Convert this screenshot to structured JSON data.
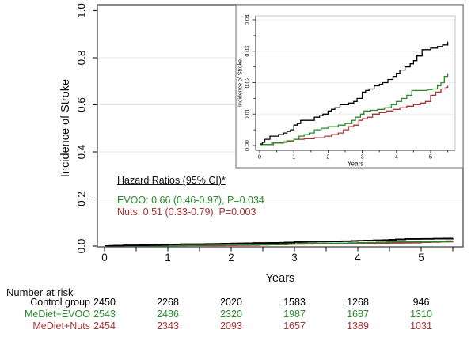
{
  "colors": {
    "control": "#000000",
    "evoo": "#278C27",
    "nuts": "#A93232",
    "grid": "#E7E7E7",
    "axis": "#2B2B2B",
    "box": "#4A4A4A",
    "inset_border": "#6F6F6F",
    "inset_plot_border": "#C6C6C6",
    "inset_grid": "#EDEDED",
    "text": "#111111"
  },
  "annotations": {
    "hazard_title": "Hazard Ratios (95% CI)*",
    "evoo": "EVOO: 0.66 (0.46-0.97), P=0.034",
    "nuts": "Nuts: 0.51 (0.33-0.79), P=0.003"
  },
  "risk_table": {
    "title": "Number at risk",
    "rows": [
      {
        "key": "control",
        "label": "Control group",
        "color_key": "control",
        "values": [
          "2450",
          "2268",
          "2020",
          "1583",
          "1268",
          "946"
        ]
      },
      {
        "key": "evoo",
        "label": "MeDiet+EVOO",
        "color_key": "evoo",
        "values": [
          "2543",
          "2486",
          "2320",
          "1987",
          "1687",
          "1310"
        ]
      },
      {
        "key": "nuts",
        "label": "MeDiet+Nuts",
        "color_key": "nuts",
        "values": [
          "2454",
          "2343",
          "2093",
          "1657",
          "1389",
          "1031"
        ]
      }
    ]
  },
  "chart_data": {
    "type": "line",
    "description": "Kaplan-Meier cumulative incidence of stroke; main plot 0-1 scale with zoomed inset 0-0.04",
    "main_axis": {
      "xlabel": "Years",
      "ylabel": "Incidence of Stroke",
      "xticks": [
        0,
        1,
        2,
        3,
        4,
        5
      ],
      "yticks": [
        "0.0",
        "0.2",
        "0.4",
        "0.6",
        "0.8",
        "1.0"
      ],
      "xlim": [
        0,
        5.5
      ],
      "ylim": [
        0,
        1
      ],
      "grid": true
    },
    "inset_axis": {
      "xlabel": "Years",
      "ylabel": "Incidence of Stroke",
      "xticks": [
        0,
        1,
        2,
        3,
        4,
        5
      ],
      "yticks": [
        "0.00",
        "0.01",
        "0.02",
        "0.03",
        "0.04"
      ],
      "xlim": [
        0,
        5.5
      ],
      "ylim": [
        0,
        0.04
      ],
      "grid": true
    },
    "series": [
      {
        "key": "control",
        "name": "Control group",
        "color_key": "control",
        "t": [
          0,
          0.08,
          0.15,
          0.3,
          0.4,
          0.55,
          0.7,
          0.8,
          0.9,
          1.0,
          1.1,
          1.2,
          1.5,
          1.6,
          1.75,
          1.85,
          2.0,
          2.1,
          2.2,
          2.35,
          2.5,
          2.6,
          2.75,
          2.85,
          3.0,
          3.1,
          3.2,
          3.35,
          3.5,
          3.6,
          3.75,
          3.9,
          4.0,
          4.1,
          4.25,
          4.4,
          4.5,
          4.6,
          4.75,
          5.0,
          5.2,
          5.35,
          5.5
        ],
        "v": [
          0.0005,
          0.001,
          0.002,
          0.003,
          0.003,
          0.0035,
          0.004,
          0.0045,
          0.005,
          0.0065,
          0.007,
          0.008,
          0.008,
          0.009,
          0.0095,
          0.01,
          0.011,
          0.0115,
          0.012,
          0.013,
          0.013,
          0.0135,
          0.014,
          0.015,
          0.017,
          0.0175,
          0.018,
          0.019,
          0.0195,
          0.02,
          0.021,
          0.022,
          0.023,
          0.024,
          0.025,
          0.026,
          0.027,
          0.0285,
          0.0305,
          0.031,
          0.0315,
          0.032,
          0.033
        ]
      },
      {
        "key": "evoo",
        "name": "MeDiet+EVOO",
        "color_key": "evoo",
        "t": [
          0,
          0.35,
          0.6,
          0.8,
          1.0,
          1.15,
          1.3,
          1.45,
          1.6,
          1.8,
          2.0,
          2.3,
          2.5,
          2.7,
          2.8,
          2.95,
          3.05,
          3.25,
          3.45,
          3.65,
          3.85,
          4.0,
          4.15,
          4.3,
          4.45,
          4.9,
          5.05,
          5.2,
          5.3,
          5.4,
          5.5
        ],
        "v": [
          0.0003,
          0.0008,
          0.001,
          0.0015,
          0.002,
          0.003,
          0.0035,
          0.004,
          0.005,
          0.0055,
          0.006,
          0.0065,
          0.007,
          0.008,
          0.009,
          0.01,
          0.011,
          0.0112,
          0.0115,
          0.012,
          0.013,
          0.014,
          0.015,
          0.016,
          0.0175,
          0.0178,
          0.018,
          0.019,
          0.02,
          0.022,
          0.023
        ]
      },
      {
        "key": "nuts",
        "name": "MeDiet+Nuts",
        "color_key": "nuts",
        "t": [
          0,
          0.4,
          0.7,
          1.0,
          1.3,
          1.6,
          1.9,
          2.1,
          2.3,
          2.45,
          2.6,
          2.75,
          2.9,
          3.0,
          3.15,
          3.3,
          3.5,
          3.7,
          3.9,
          4.1,
          4.3,
          4.5,
          4.7,
          4.85,
          5.0,
          5.15,
          5.3,
          5.45,
          5.5
        ],
        "v": [
          0.0003,
          0.0008,
          0.0012,
          0.002,
          0.0022,
          0.0025,
          0.003,
          0.0035,
          0.004,
          0.005,
          0.006,
          0.0065,
          0.008,
          0.0085,
          0.009,
          0.01,
          0.0105,
          0.011,
          0.0115,
          0.012,
          0.0125,
          0.013,
          0.0135,
          0.014,
          0.016,
          0.017,
          0.018,
          0.0185,
          0.019
        ]
      }
    ]
  }
}
